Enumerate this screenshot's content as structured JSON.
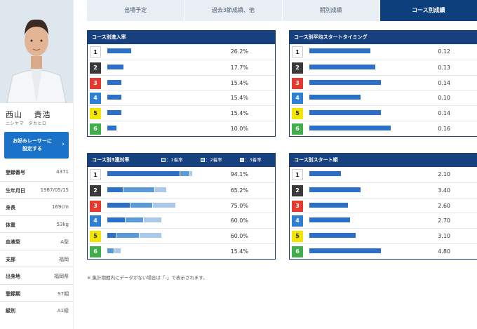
{
  "profile": {
    "name": "西山　 貴浩",
    "kana": "ニシヤマ　タカヒロ",
    "fav_button": "お好みレーサーに\n設定する",
    "fields": [
      {
        "key": "登録番号",
        "value": "4371"
      },
      {
        "key": "生年月日",
        "value": "1987/05/15"
      },
      {
        "key": "身長",
        "value": "169cm"
      },
      {
        "key": "体重",
        "value": "53kg"
      },
      {
        "key": "血液型",
        "value": "A型"
      },
      {
        "key": "支部",
        "value": "福岡"
      },
      {
        "key": "出身地",
        "value": "福岡県"
      },
      {
        "key": "登録期",
        "value": "97期"
      },
      {
        "key": "級別",
        "value": "A1級"
      }
    ]
  },
  "tabs": [
    {
      "label": "出場予定",
      "active": false
    },
    {
      "label": "過去3節成績、他",
      "active": false
    },
    {
      "label": "期別成績",
      "active": false
    },
    {
      "label": "コース別成績",
      "active": true
    }
  ],
  "lane_colors": {
    "1": {
      "bg": "#ffffff",
      "fg": "#222222"
    },
    "2": {
      "bg": "#3a3a3a",
      "fg": "#ffffff"
    },
    "3": {
      "bg": "#e23b2e",
      "fg": "#ffffff"
    },
    "4": {
      "bg": "#2d7fd6",
      "fg": "#ffffff"
    },
    "5": {
      "bg": "#f2e600",
      "fg": "#222222"
    },
    "6": {
      "bg": "#3fae4b",
      "fg": "#ffffff"
    }
  },
  "bar_colors": {
    "primary": "#2b6fc9",
    "second": "#5a9ad9",
    "third": "#a9c8ea"
  },
  "panels": {
    "entry_rate": {
      "title": "コース別進入率",
      "rows": [
        {
          "lane": "1",
          "value": 26.2,
          "label": "26.2%"
        },
        {
          "lane": "2",
          "value": 17.7,
          "label": "17.7%"
        },
        {
          "lane": "3",
          "value": 15.4,
          "label": "15.4%"
        },
        {
          "lane": "4",
          "value": 15.4,
          "label": "15.4%"
        },
        {
          "lane": "5",
          "value": 15.4,
          "label": "15.4%"
        },
        {
          "lane": "6",
          "value": 10.0,
          "label": "10.0%"
        }
      ]
    },
    "avg_start": {
      "title": "コース別平均スタートタイミング",
      "rows": [
        {
          "lane": "1",
          "value": 0.12,
          "label": "0.12"
        },
        {
          "lane": "2",
          "value": 0.13,
          "label": "0.13"
        },
        {
          "lane": "3",
          "value": 0.14,
          "label": "0.14"
        },
        {
          "lane": "4",
          "value": 0.1,
          "label": "0.10"
        },
        {
          "lane": "5",
          "value": 0.14,
          "label": "0.14"
        },
        {
          "lane": "6",
          "value": 0.16,
          "label": "0.16"
        }
      ]
    },
    "top3_rate": {
      "title": "コース別3連対率",
      "legend": [
        "：1着率",
        "：2着率",
        "：3着率"
      ],
      "rows": [
        {
          "lane": "1",
          "first": 80.0,
          "second": 10.6,
          "third": 3.5,
          "label": "94.1%"
        },
        {
          "lane": "2",
          "first": 17.4,
          "second": 34.8,
          "third": 13.0,
          "label": "65.2%"
        },
        {
          "lane": "3",
          "first": 25.0,
          "second": 25.0,
          "third": 25.0,
          "label": "75.0%"
        },
        {
          "lane": "4",
          "first": 20.0,
          "second": 20.0,
          "third": 20.0,
          "label": "60.0%"
        },
        {
          "lane": "5",
          "first": 10.0,
          "second": 25.0,
          "third": 25.0,
          "label": "60.0%"
        },
        {
          "lane": "6",
          "first": 0.0,
          "second": 7.7,
          "third": 7.7,
          "label": "15.4%"
        }
      ]
    },
    "start_rank": {
      "title": "コース別スタート順",
      "rows": [
        {
          "lane": "1",
          "value": 2.1,
          "label": "2.10"
        },
        {
          "lane": "2",
          "value": 3.4,
          "label": "3.40"
        },
        {
          "lane": "3",
          "value": 2.6,
          "label": "2.60"
        },
        {
          "lane": "4",
          "value": 2.7,
          "label": "2.70"
        },
        {
          "lane": "5",
          "value": 3.1,
          "label": "3.10"
        },
        {
          "lane": "6",
          "value": 4.8,
          "label": "4.80"
        }
      ]
    }
  },
  "note": "※ 集計期間内にデータがない場合は「-」で表示されます。"
}
